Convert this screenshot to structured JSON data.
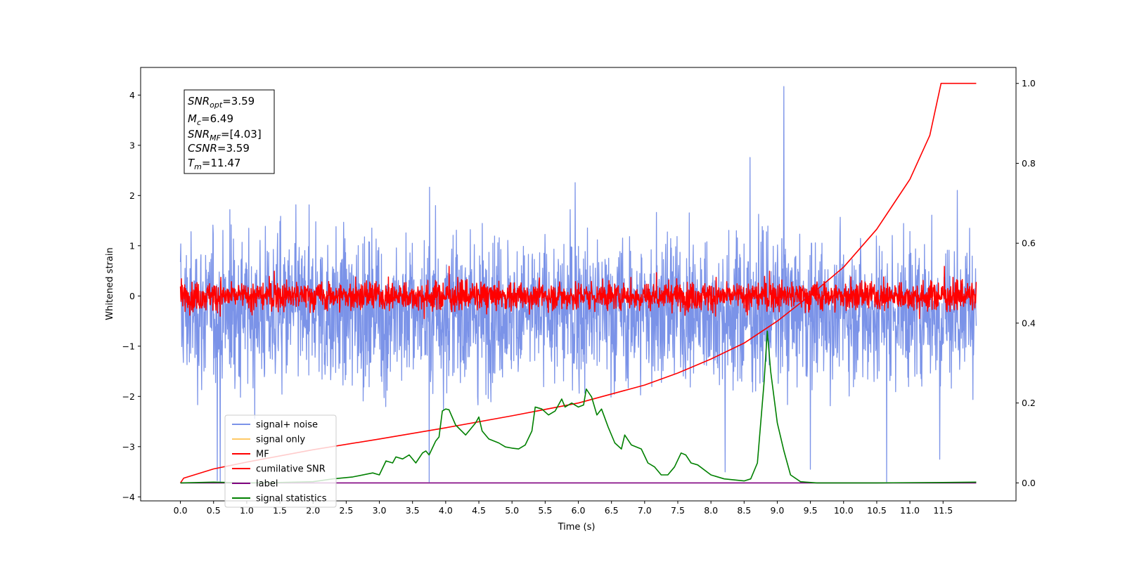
{
  "chart_data": {
    "type": "line",
    "title": "",
    "xlabel": "Time (s)",
    "ylabel": "Whitened strain",
    "xlim": [
      -0.6,
      12.6
    ],
    "ylim": [
      -4.08,
      4.55
    ],
    "y2lim": [
      -0.045,
      1.04
    ],
    "grid": false,
    "legend_position": "bottom-left",
    "x_ticks": [
      "0.0",
      "0.5",
      "1.0",
      "1.5",
      "2.0",
      "2.5",
      "3.0",
      "3.5",
      "4.0",
      "4.5",
      "5.0",
      "5.5",
      "6.0",
      "6.5",
      "7.0",
      "7.5",
      "8.0",
      "8.5",
      "9.0",
      "9.5",
      "10.0",
      "10.5",
      "11.0",
      "11.5"
    ],
    "y_ticks": [
      "−4",
      "−3",
      "−2",
      "−1",
      "0",
      "1",
      "2",
      "3",
      "4"
    ],
    "y2_ticks": [
      "0.0",
      "0.2",
      "0.4",
      "0.6",
      "0.8",
      "1.0"
    ],
    "annotation": {
      "lines": [
        {
          "sym": "SNR",
          "sub": "opt",
          "value": "=3.59"
        },
        {
          "sym": "M",
          "sub": "c",
          "value": "=6.49"
        },
        {
          "sym": "SNR",
          "sub": "MF",
          "value": "=[4.03]"
        },
        {
          "sym": "CSNR",
          "sub": "",
          "value": "=3.59"
        },
        {
          "sym": "T",
          "sub": "m",
          "value": "=11.47"
        }
      ]
    },
    "series": [
      {
        "name": "signal+ noise",
        "color": "#4f6fe0",
        "axis": "left",
        "x_range": [
          0,
          12
        ],
        "kind": "noise",
        "envelope": {
          "mean": -0.3,
          "upper_typical": 2.0,
          "lower_typical": -2.4,
          "max": 4.17,
          "min": -3.7
        },
        "spikes": [
          {
            "x": 9.1,
            "y": 4.17
          },
          {
            "x": 0.6,
            "y": -3.7
          },
          {
            "x": 3.75,
            "y": -3.7
          },
          {
            "x": 10.65,
            "y": -3.7
          },
          {
            "x": 11.45,
            "y": -3.25
          },
          {
            "x": 9.5,
            "y": -3.45
          }
        ]
      },
      {
        "name": "signal only",
        "color": "#ffc966",
        "axis": "left",
        "x_range": [
          0,
          12
        ],
        "values": []
      },
      {
        "name": "MF",
        "color": "#ff0000",
        "axis": "left",
        "x_range": [
          0,
          12
        ],
        "kind": "noise",
        "envelope": {
          "mean": 0.0,
          "upper_typical": 0.45,
          "lower_typical": -0.4,
          "max": 0.98,
          "min": -0.45
        }
      },
      {
        "name": "cumilative SNR",
        "color": "#ff0000",
        "axis": "right",
        "points": [
          [
            0.0,
            0.0
          ],
          [
            0.05,
            0.012
          ],
          [
            0.5,
            0.035
          ],
          [
            1.0,
            0.052
          ],
          [
            2.0,
            0.083
          ],
          [
            3.0,
            0.11
          ],
          [
            4.0,
            0.138
          ],
          [
            5.0,
            0.168
          ],
          [
            6.0,
            0.2
          ],
          [
            7.0,
            0.245
          ],
          [
            7.5,
            0.275
          ],
          [
            8.0,
            0.31
          ],
          [
            8.5,
            0.35
          ],
          [
            9.0,
            0.405
          ],
          [
            9.5,
            0.47
          ],
          [
            10.0,
            0.54
          ],
          [
            10.5,
            0.635
          ],
          [
            11.0,
            0.76
          ],
          [
            11.3,
            0.87
          ],
          [
            11.47,
            1.0
          ],
          [
            12.0,
            1.0
          ]
        ]
      },
      {
        "name": "label",
        "color": "#800080",
        "axis": "right",
        "points": [
          [
            0.0,
            0.0
          ],
          [
            12.0,
            0.0
          ]
        ]
      },
      {
        "name": "signal statistics",
        "color": "#008000",
        "axis": "right",
        "points": [
          [
            0.0,
            0.0
          ],
          [
            0.5,
            0.002
          ],
          [
            1.0,
            0.0
          ],
          [
            1.5,
            0.001
          ],
          [
            2.0,
            0.003
          ],
          [
            2.3,
            0.01
          ],
          [
            2.6,
            0.015
          ],
          [
            2.9,
            0.025
          ],
          [
            3.0,
            0.02
          ],
          [
            3.1,
            0.055
          ],
          [
            3.2,
            0.05
          ],
          [
            3.25,
            0.065
          ],
          [
            3.35,
            0.06
          ],
          [
            3.45,
            0.07
          ],
          [
            3.55,
            0.05
          ],
          [
            3.65,
            0.075
          ],
          [
            3.7,
            0.08
          ],
          [
            3.75,
            0.07
          ],
          [
            3.85,
            0.105
          ],
          [
            3.9,
            0.115
          ],
          [
            3.95,
            0.18
          ],
          [
            4.0,
            0.185
          ],
          [
            4.05,
            0.183
          ],
          [
            4.15,
            0.145
          ],
          [
            4.3,
            0.12
          ],
          [
            4.45,
            0.15
          ],
          [
            4.5,
            0.165
          ],
          [
            4.55,
            0.13
          ],
          [
            4.65,
            0.11
          ],
          [
            4.8,
            0.1
          ],
          [
            4.9,
            0.09
          ],
          [
            5.0,
            0.087
          ],
          [
            5.1,
            0.085
          ],
          [
            5.2,
            0.095
          ],
          [
            5.3,
            0.13
          ],
          [
            5.35,
            0.19
          ],
          [
            5.45,
            0.185
          ],
          [
            5.55,
            0.17
          ],
          [
            5.65,
            0.18
          ],
          [
            5.75,
            0.21
          ],
          [
            5.8,
            0.19
          ],
          [
            5.9,
            0.2
          ],
          [
            6.0,
            0.19
          ],
          [
            6.08,
            0.195
          ],
          [
            6.12,
            0.235
          ],
          [
            6.2,
            0.215
          ],
          [
            6.28,
            0.17
          ],
          [
            6.35,
            0.185
          ],
          [
            6.45,
            0.14
          ],
          [
            6.55,
            0.1
          ],
          [
            6.65,
            0.085
          ],
          [
            6.7,
            0.12
          ],
          [
            6.8,
            0.095
          ],
          [
            6.95,
            0.085
          ],
          [
            7.05,
            0.05
          ],
          [
            7.15,
            0.04
          ],
          [
            7.25,
            0.02
          ],
          [
            7.35,
            0.02
          ],
          [
            7.45,
            0.04
          ],
          [
            7.55,
            0.075
          ],
          [
            7.62,
            0.07
          ],
          [
            7.7,
            0.05
          ],
          [
            7.8,
            0.045
          ],
          [
            8.0,
            0.02
          ],
          [
            8.2,
            0.01
          ],
          [
            8.5,
            0.005
          ],
          [
            8.6,
            0.01
          ],
          [
            8.7,
            0.05
          ],
          [
            8.8,
            0.25
          ],
          [
            8.85,
            0.38
          ],
          [
            8.9,
            0.28
          ],
          [
            9.0,
            0.15
          ],
          [
            9.1,
            0.08
          ],
          [
            9.2,
            0.02
          ],
          [
            9.35,
            0.003
          ],
          [
            9.6,
            0.0
          ],
          [
            10.5,
            0.0
          ],
          [
            11.5,
            0.001
          ],
          [
            12.0,
            0.002
          ]
        ]
      }
    ]
  }
}
